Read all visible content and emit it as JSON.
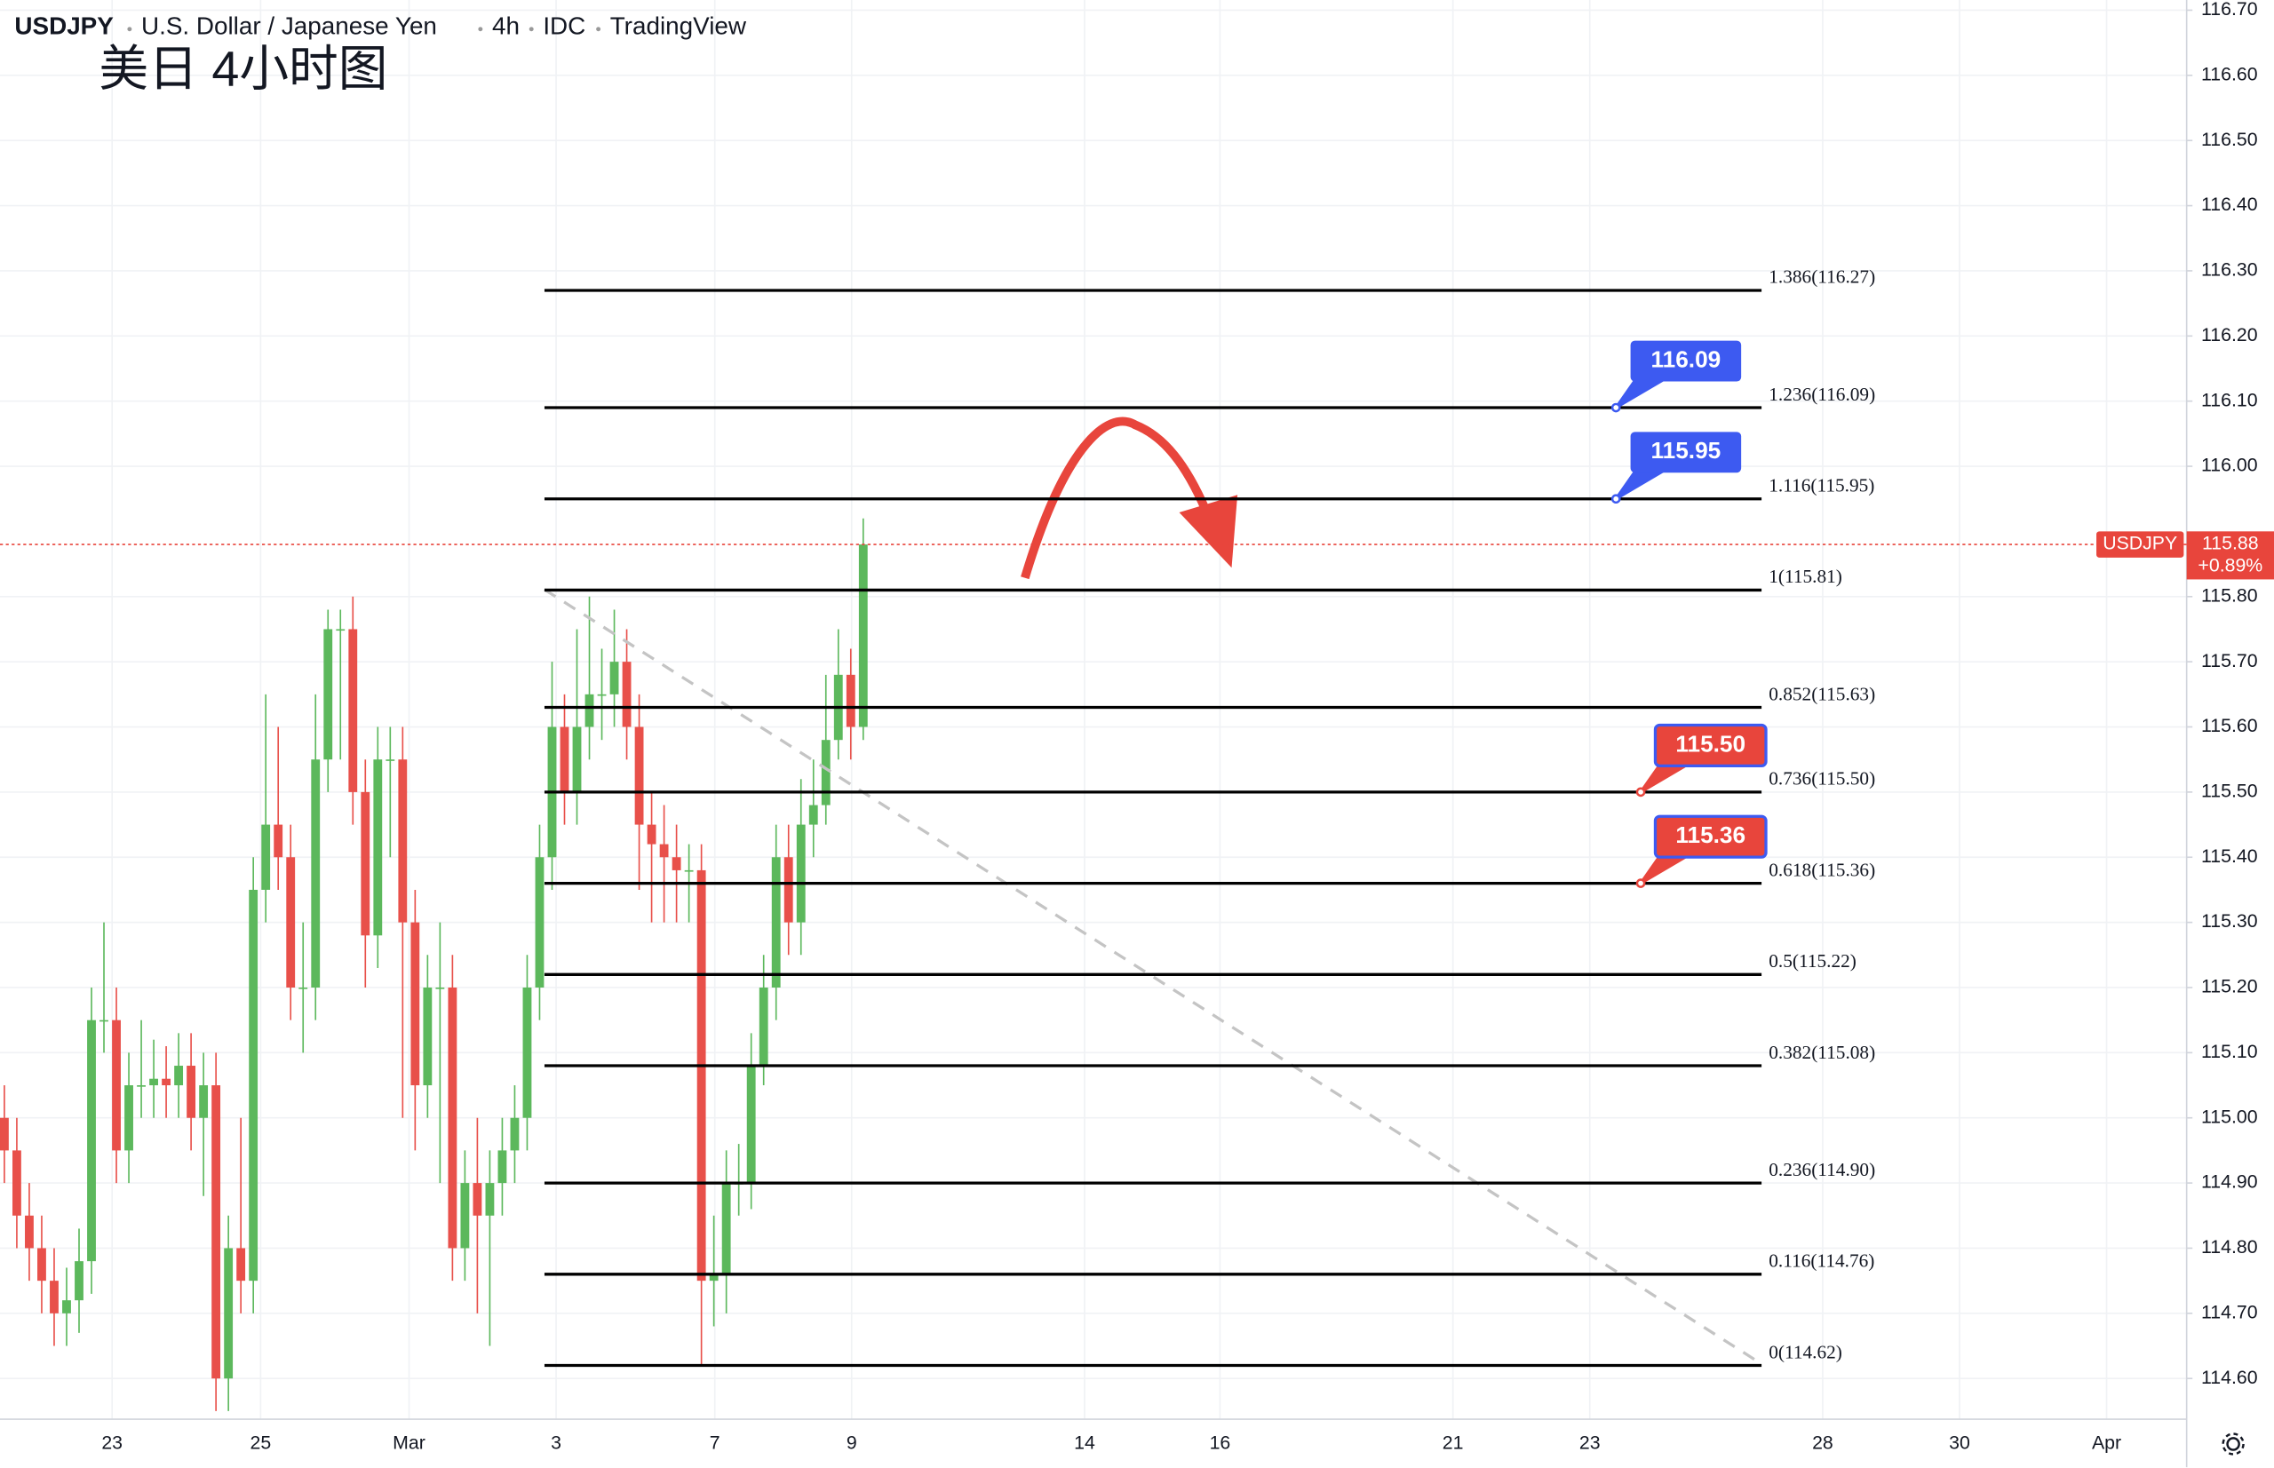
{
  "chart_data": {
    "type": "candlestick",
    "title": "USDJPY",
    "subtitle_parts": [
      "U.S. Dollar / Japanese Yen",
      "4h",
      "IDC",
      "TradingView"
    ],
    "annotation": "美日 4小时图",
    "symbol": "USDJPY",
    "last_price": 115.88,
    "last_price_label": "115.88",
    "change_label": "+0.89%",
    "up_color": "#5cb85c",
    "down_color": "#e8504a",
    "open": [
      115.0,
      114.95,
      114.85,
      114.8,
      114.75,
      114.7,
      114.72,
      114.78,
      115.15,
      115.15,
      114.95,
      115.05,
      115.05,
      115.06,
      115.05,
      115.08,
      115.0,
      115.05,
      114.6,
      114.8,
      114.75,
      115.35,
      115.45,
      115.4,
      115.2,
      115.2,
      115.55,
      115.75,
      115.75,
      115.5,
      115.28,
      115.55,
      115.55,
      115.3,
      115.05,
      115.2,
      115.2,
      114.8,
      114.9,
      114.85,
      114.9,
      114.95,
      115.0,
      115.2,
      115.4,
      115.6,
      115.5,
      115.6,
      115.65,
      115.65,
      115.7,
      115.6,
      115.45,
      115.42,
      115.4,
      115.38,
      115.38,
      114.75,
      114.76,
      114.9,
      114.9,
      115.08,
      115.2,
      115.4,
      115.3,
      115.45,
      115.48,
      115.58,
      115.68,
      115.6
    ],
    "high": [
      115.05,
      115.0,
      114.9,
      114.85,
      114.8,
      114.77,
      114.83,
      115.2,
      115.3,
      115.2,
      115.1,
      115.15,
      115.12,
      115.11,
      115.13,
      115.13,
      115.1,
      115.1,
      114.85,
      115.0,
      115.4,
      115.65,
      115.6,
      115.45,
      115.3,
      115.65,
      115.78,
      115.78,
      115.8,
      115.55,
      115.6,
      115.6,
      115.6,
      115.35,
      115.25,
      115.3,
      115.25,
      114.95,
      115.0,
      114.95,
      115.0,
      115.05,
      115.25,
      115.45,
      115.7,
      115.65,
      115.75,
      115.8,
      115.72,
      115.78,
      115.75,
      115.65,
      115.5,
      115.48,
      115.45,
      115.42,
      115.42,
      114.85,
      114.95,
      114.96,
      115.13,
      115.25,
      115.45,
      115.45,
      115.52,
      115.55,
      115.68,
      115.75,
      115.72,
      115.92
    ],
    "low": [
      114.9,
      114.8,
      114.75,
      114.7,
      114.65,
      114.65,
      114.67,
      114.73,
      115.1,
      114.9,
      114.9,
      115.0,
      115.0,
      115.0,
      115.0,
      114.95,
      114.88,
      114.55,
      114.55,
      114.7,
      114.7,
      115.3,
      115.35,
      115.15,
      115.1,
      115.15,
      115.5,
      115.55,
      115.45,
      115.2,
      115.23,
      115.4,
      115.0,
      114.95,
      115.0,
      114.9,
      114.75,
      114.75,
      114.7,
      114.65,
      114.85,
      114.9,
      114.95,
      115.15,
      115.35,
      115.45,
      115.45,
      115.55,
      115.58,
      115.6,
      115.55,
      115.35,
      115.3,
      115.3,
      115.3,
      115.3,
      114.62,
      114.68,
      114.7,
      114.85,
      114.86,
      115.05,
      115.15,
      115.25,
      115.25,
      115.4,
      115.45,
      115.55,
      115.55,
      115.58
    ],
    "close": [
      114.95,
      114.85,
      114.8,
      114.75,
      114.7,
      114.72,
      114.78,
      115.15,
      115.15,
      114.95,
      115.05,
      115.05,
      115.06,
      115.05,
      115.08,
      115.0,
      115.05,
      114.6,
      114.8,
      114.75,
      115.35,
      115.45,
      115.4,
      115.2,
      115.2,
      115.55,
      115.75,
      115.75,
      115.5,
      115.28,
      115.55,
      115.55,
      115.3,
      115.05,
      115.2,
      115.2,
      114.8,
      114.9,
      114.85,
      114.9,
      114.95,
      115.0,
      115.2,
      115.4,
      115.6,
      115.5,
      115.6,
      115.65,
      115.65,
      115.7,
      115.6,
      115.45,
      115.42,
      115.4,
      115.38,
      115.38,
      114.75,
      114.76,
      114.9,
      114.9,
      115.08,
      115.2,
      115.4,
      115.3,
      115.45,
      115.48,
      115.58,
      115.68,
      115.6,
      115.88
    ],
    "fib_levels": [
      {
        "value": 116.27,
        "label": "1.386(116.27)"
      },
      {
        "value": 116.09,
        "label": "1.236(116.09)"
      },
      {
        "value": 115.95,
        "label": "1.116(115.95)"
      },
      {
        "value": 115.81,
        "label": "1(115.81)"
      },
      {
        "value": 115.63,
        "label": "0.852(115.63)"
      },
      {
        "value": 115.5,
        "label": "0.736(115.50)"
      },
      {
        "value": 115.36,
        "label": "0.618(115.36)"
      },
      {
        "value": 115.22,
        "label": "0.5(115.22)"
      },
      {
        "value": 115.08,
        "label": "0.382(115.08)"
      },
      {
        "value": 114.9,
        "label": "0.236(114.90)"
      },
      {
        "value": 114.76,
        "label": "0.116(114.76)"
      },
      {
        "value": 114.62,
        "label": "0(114.62)"
      }
    ],
    "callouts": [
      {
        "value": 116.09,
        "label": "116.09",
        "color": "#3d5af1"
      },
      {
        "value": 115.95,
        "label": "115.95",
        "color": "#3d5af1"
      },
      {
        "value": 115.5,
        "label": "115.50",
        "color": "#e8453c"
      },
      {
        "value": 115.36,
        "label": "115.36",
        "color": "#e8453c"
      }
    ],
    "xticks": [
      "23",
      "25",
      "Mar",
      "3",
      "7",
      "9",
      "14",
      "16",
      "21",
      "23",
      "28",
      "30",
      "Apr"
    ],
    "ylim": [
      114.6,
      116.7
    ],
    "yticks": [
      {
        "value": 116.7,
        "label": "116.70"
      },
      {
        "value": 116.6,
        "label": "116.60"
      },
      {
        "value": 116.5,
        "label": "116.50"
      },
      {
        "value": 116.4,
        "label": "116.40"
      },
      {
        "value": 116.3,
        "label": "116.30"
      },
      {
        "value": 116.2,
        "label": "116.20"
      },
      {
        "value": 116.1,
        "label": "116.10"
      },
      {
        "value": 116.0,
        "label": "116.00"
      },
      {
        "value": 115.8,
        "label": "115.80"
      },
      {
        "value": 115.7,
        "label": "115.70"
      },
      {
        "value": 115.6,
        "label": "115.60"
      },
      {
        "value": 115.5,
        "label": "115.50"
      },
      {
        "value": 115.4,
        "label": "115.40"
      },
      {
        "value": 115.3,
        "label": "115.30"
      },
      {
        "value": 115.2,
        "label": "115.20"
      },
      {
        "value": 115.1,
        "label": "115.10"
      },
      {
        "value": 115.0,
        "label": "115.00"
      },
      {
        "value": 114.9,
        "label": "114.90"
      },
      {
        "value": 114.8,
        "label": "114.80"
      },
      {
        "value": 114.7,
        "label": "114.70"
      },
      {
        "value": 114.6,
        "label": "114.60"
      }
    ],
    "grid": true
  }
}
